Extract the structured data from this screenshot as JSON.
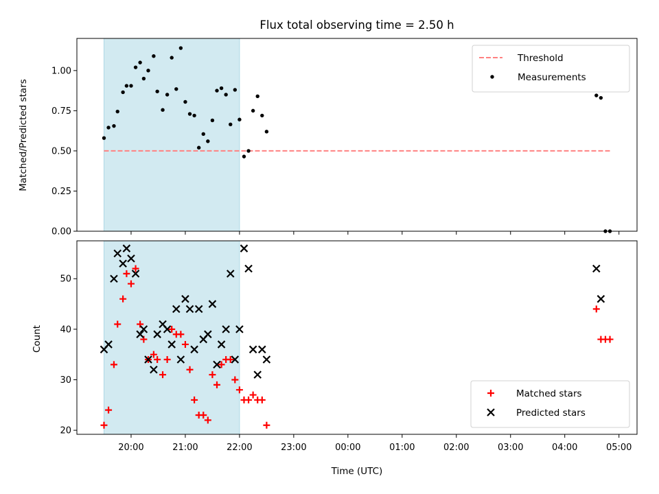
{
  "title": "Flux total observing time = 2.50 h",
  "colors": {
    "threshold": "#ff8080",
    "measurement": "#000000",
    "matched": "#ff0000",
    "predicted": "#000000",
    "shade": "#add8e6"
  },
  "chart_data": [
    {
      "type": "scatter",
      "ylabel": "Matched/Predicted stars",
      "ylim": [
        0,
        1.2
      ],
      "yticks": [
        "0.00",
        "0.25",
        "0.50",
        "0.75",
        "1.00"
      ],
      "x_range": [
        "19:00",
        "05:20"
      ],
      "shaded_span": [
        "19:30",
        "22:00"
      ],
      "legend": {
        "placement": "upper right",
        "entries": [
          "Threshold",
          "Measurements"
        ]
      },
      "threshold": {
        "name": "Threshold",
        "y": 0.5,
        "x": [
          "19:30",
          "04:50"
        ],
        "style": "dashed"
      },
      "series": [
        {
          "name": "Measurements",
          "marker": "dot",
          "points": [
            [
              "19:30",
              0.58
            ],
            [
              "19:35",
              0.645
            ],
            [
              "19:41",
              0.655
            ],
            [
              "19:45",
              0.745
            ],
            [
              "19:51",
              0.865
            ],
            [
              "19:55",
              0.905
            ],
            [
              "20:00",
              0.905
            ],
            [
              "20:05",
              1.02
            ],
            [
              "20:10",
              1.05
            ],
            [
              "20:14",
              0.95
            ],
            [
              "20:19",
              1.0
            ],
            [
              "20:25",
              1.09
            ],
            [
              "20:29",
              0.87
            ],
            [
              "20:35",
              0.755
            ],
            [
              "20:40",
              0.85
            ],
            [
              "20:45",
              1.08
            ],
            [
              "20:50",
              0.885
            ],
            [
              "20:55",
              1.14
            ],
            [
              "21:00",
              0.805
            ],
            [
              "21:05",
              0.73
            ],
            [
              "21:10",
              0.72
            ],
            [
              "21:15",
              0.52
            ],
            [
              "21:20",
              0.605
            ],
            [
              "21:25",
              0.56
            ],
            [
              "21:30",
              0.69
            ],
            [
              "21:35",
              0.875
            ],
            [
              "21:40",
              0.89
            ],
            [
              "21:45",
              0.85
            ],
            [
              "21:50",
              0.665
            ],
            [
              "21:55",
              0.88
            ],
            [
              "22:00",
              0.695
            ],
            [
              "22:05",
              0.465
            ],
            [
              "22:10",
              0.5
            ],
            [
              "22:15",
              0.75
            ],
            [
              "22:20",
              0.84
            ],
            [
              "22:25",
              0.72
            ],
            [
              "22:30",
              0.62
            ],
            [
              "04:35",
              0.845
            ],
            [
              "04:40",
              0.83
            ],
            [
              "04:45",
              0.0
            ],
            [
              "04:50",
              0.0
            ]
          ]
        }
      ]
    },
    {
      "type": "scatter",
      "xlabel": "Time (UTC)",
      "ylabel": "Count",
      "ylim": [
        19.2,
        57.5
      ],
      "yticks": [
        "20",
        "30",
        "40",
        "50"
      ],
      "x_range": [
        "19:00",
        "05:20"
      ],
      "xticks": [
        "20:00",
        "21:00",
        "22:00",
        "23:00",
        "00:00",
        "01:00",
        "02:00",
        "03:00",
        "04:00",
        "05:00"
      ],
      "shaded_span": [
        "19:30",
        "22:00"
      ],
      "legend": {
        "placement": "lower right",
        "entries": [
          "Matched stars",
          "Predicted stars"
        ]
      },
      "series": [
        {
          "name": "Matched stars",
          "marker": "plus",
          "points": [
            [
              "19:30",
              21
            ],
            [
              "19:35",
              24
            ],
            [
              "19:41",
              33
            ],
            [
              "19:45",
              41
            ],
            [
              "19:51",
              46
            ],
            [
              "19:55",
              51
            ],
            [
              "20:00",
              49
            ],
            [
              "20:05",
              52
            ],
            [
              "20:10",
              41
            ],
            [
              "20:14",
              38
            ],
            [
              "20:19",
              34
            ],
            [
              "20:25",
              35
            ],
            [
              "20:29",
              34
            ],
            [
              "20:35",
              31
            ],
            [
              "20:40",
              34
            ],
            [
              "20:45",
              40
            ],
            [
              "20:50",
              39
            ],
            [
              "20:55",
              39
            ],
            [
              "21:00",
              37
            ],
            [
              "21:05",
              32
            ],
            [
              "21:10",
              26
            ],
            [
              "21:15",
              23
            ],
            [
              "21:20",
              23
            ],
            [
              "21:25",
              22
            ],
            [
              "21:30",
              31
            ],
            [
              "21:35",
              29
            ],
            [
              "21:40",
              33
            ],
            [
              "21:45",
              34
            ],
            [
              "21:50",
              34
            ],
            [
              "21:55",
              30
            ],
            [
              "22:00",
              28
            ],
            [
              "22:05",
              26
            ],
            [
              "22:10",
              26
            ],
            [
              "22:15",
              27
            ],
            [
              "22:20",
              26
            ],
            [
              "22:25",
              26
            ],
            [
              "22:30",
              21
            ],
            [
              "04:35",
              44
            ],
            [
              "04:40",
              38
            ],
            [
              "04:45",
              38
            ],
            [
              "04:50",
              38
            ]
          ]
        },
        {
          "name": "Predicted stars",
          "marker": "x",
          "points": [
            [
              "19:30",
              36
            ],
            [
              "19:35",
              37
            ],
            [
              "19:41",
              50
            ],
            [
              "19:45",
              55
            ],
            [
              "19:51",
              53
            ],
            [
              "19:55",
              56
            ],
            [
              "20:00",
              54
            ],
            [
              "20:05",
              51
            ],
            [
              "20:10",
              39
            ],
            [
              "20:14",
              40
            ],
            [
              "20:19",
              34
            ],
            [
              "20:25",
              32
            ],
            [
              "20:29",
              39
            ],
            [
              "20:35",
              41
            ],
            [
              "20:40",
              40
            ],
            [
              "20:45",
              37
            ],
            [
              "20:50",
              44
            ],
            [
              "20:55",
              34
            ],
            [
              "21:00",
              46
            ],
            [
              "21:05",
              44
            ],
            [
              "21:10",
              36
            ],
            [
              "21:15",
              44
            ],
            [
              "21:20",
              38
            ],
            [
              "21:25",
              39
            ],
            [
              "21:30",
              45
            ],
            [
              "21:35",
              33
            ],
            [
              "21:40",
              37
            ],
            [
              "21:45",
              40
            ],
            [
              "21:50",
              51
            ],
            [
              "21:55",
              34
            ],
            [
              "22:00",
              40
            ],
            [
              "22:05",
              56
            ],
            [
              "22:10",
              52
            ],
            [
              "22:15",
              36
            ],
            [
              "22:20",
              31
            ],
            [
              "22:25",
              36
            ],
            [
              "22:30",
              34
            ],
            [
              "04:35",
              52
            ],
            [
              "04:40",
              46
            ]
          ]
        }
      ]
    }
  ]
}
